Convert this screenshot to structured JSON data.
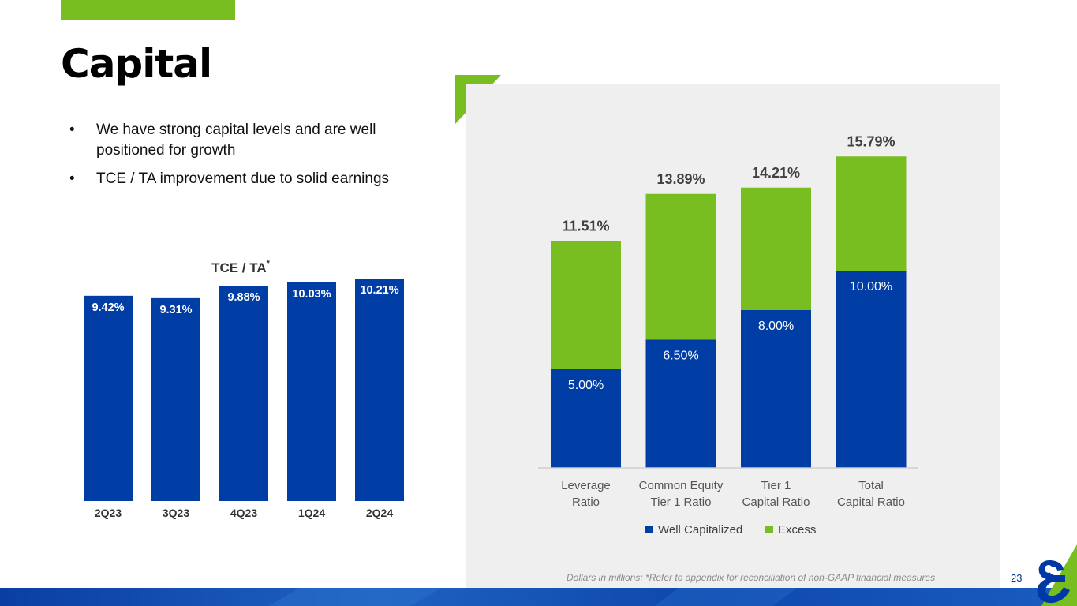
{
  "slide": {
    "title": "Capital",
    "bullets": [
      "We have strong capital levels and are well positioned for growth",
      "TCE / TA improvement due to solid earnings"
    ],
    "bullet_glyph": "•",
    "footnote": "Dollars in millions; *Refer to appendix for reconciliation of non-GAAP financial measures",
    "page_number": "23",
    "logo_icon": "ampersand-logo-icon"
  },
  "colors": {
    "blue": "#003da5",
    "green": "#78be20",
    "panel": "#efefef"
  },
  "chart_data": [
    {
      "type": "bar",
      "title": "TCE / TA",
      "title_marker": "*",
      "categories": [
        "2Q23",
        "3Q23",
        "4Q23",
        "1Q24",
        "2Q24"
      ],
      "values": [
        9.42,
        9.31,
        9.88,
        10.03,
        10.21
      ],
      "value_labels": [
        "9.42%",
        "9.31%",
        "9.88%",
        "10.03%",
        "10.21%"
      ],
      "ylim": [
        0,
        10.5
      ],
      "grid": false
    },
    {
      "type": "bar",
      "stacked": true,
      "categories": [
        [
          "Leverage",
          "Ratio"
        ],
        [
          "Common Equity",
          "Tier 1 Ratio"
        ],
        [
          "Tier 1",
          "Capital Ratio"
        ],
        [
          "Total",
          "Capital Ratio"
        ]
      ],
      "series": [
        {
          "name": "Well Capitalized",
          "values": [
            5.0,
            6.5,
            8.0,
            10.0
          ],
          "labels": [
            "5.00%",
            "6.50%",
            "8.00%",
            "10.00%"
          ]
        },
        {
          "name": "Excess",
          "values": [
            6.51,
            7.39,
            6.21,
            5.79
          ]
        }
      ],
      "totals": [
        11.51,
        13.89,
        14.21,
        15.79
      ],
      "total_labels": [
        "11.51%",
        "13.89%",
        "14.21%",
        "15.79%"
      ],
      "ylim": [
        0,
        16
      ],
      "legend_position": "bottom",
      "grid": false
    }
  ]
}
